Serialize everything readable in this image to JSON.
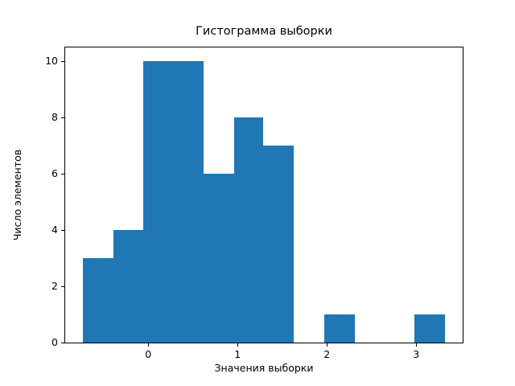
{
  "chart_data": {
    "type": "bar",
    "subtype": "histogram",
    "title": "Гистограмма выборки",
    "xlabel": "Значения выборки",
    "ylabel": "Число элементов",
    "bin_edges": [
      -0.73,
      -0.39,
      -0.06,
      0.28,
      0.62,
      0.96,
      1.29,
      1.63,
      1.97,
      2.31,
      2.64,
      2.98,
      3.32
    ],
    "counts": [
      3,
      4,
      10,
      10,
      6,
      8,
      7,
      0,
      1,
      0,
      0,
      1
    ],
    "bar_color": "#1f77b4",
    "xlim": [
      -0.93,
      3.52
    ],
    "ylim": [
      0,
      10.5
    ],
    "xticks": [
      0,
      1,
      2,
      3
    ],
    "yticks": [
      0,
      2,
      4,
      6,
      8,
      10
    ],
    "grid": false,
    "legend": null,
    "background_color": "#ffffff",
    "axis_color": "#000000"
  }
}
